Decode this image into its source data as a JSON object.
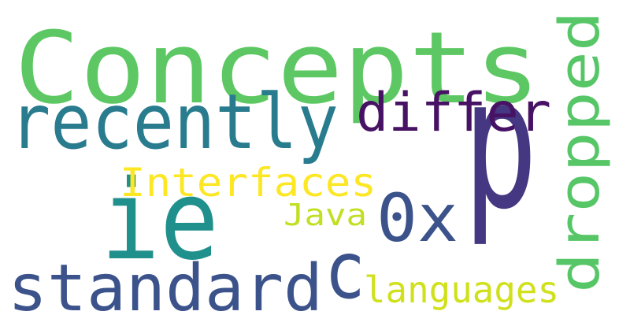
{
  "words": [
    {
      "text": "Concepts",
      "color": "#5dc863"
    },
    {
      "text": "p",
      "color": "#453781"
    },
    {
      "text": "ie",
      "color": "#20908d"
    },
    {
      "text": "recently",
      "color": "#297b8e"
    },
    {
      "text": "dropped",
      "color": "#56c667"
    },
    {
      "text": "standard",
      "color": "#3b528b"
    },
    {
      "text": "differ",
      "color": "#471164"
    },
    {
      "text": "c",
      "color": "#3b528b"
    },
    {
      "text": "0x",
      "color": "#3b528b"
    },
    {
      "text": "Interfaces",
      "color": "#fde725"
    },
    {
      "text": "languages",
      "color": "#d0e11c"
    },
    {
      "text": "Java",
      "color": "#c2df23"
    }
  ]
}
